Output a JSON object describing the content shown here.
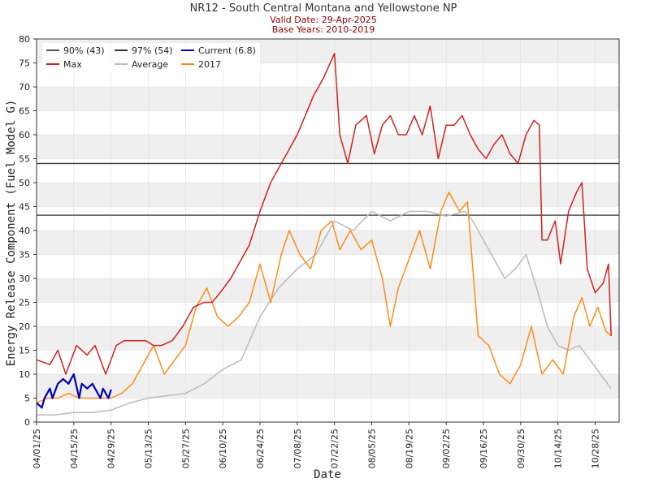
{
  "chart_data": {
    "type": "line",
    "title": "NR12 - South Central Montana and Yellowstone NP",
    "subtitle_lines": [
      "Valid Date: 29-Apr-2025",
      "Base Years: 2010-2019"
    ],
    "xlabel": "Date",
    "ylabel": "Energy Release Component  (Fuel Model G)",
    "x_ticks": [
      "04/01/25",
      "04/15/25",
      "04/29/25",
      "05/13/25",
      "05/27/25",
      "06/10/25",
      "06/24/25",
      "07/08/25",
      "07/22/25",
      "08/05/25",
      "08/19/25",
      "09/02/25",
      "09/16/25",
      "09/30/25",
      "10/14/25",
      "10/28/25"
    ],
    "x_range": [
      "2025-04-01",
      "2025-11-06"
    ],
    "ylim": [
      0,
      80
    ],
    "y_ticks": [
      0,
      5,
      10,
      15,
      20,
      25,
      30,
      35,
      40,
      45,
      50,
      55,
      60,
      65,
      70,
      75,
      80
    ],
    "grid": true,
    "legend_position": "top-left",
    "thresholds": [
      {
        "name": "90% (43)",
        "value": 43.2,
        "color": "#555555"
      },
      {
        "name": "97% (54)",
        "value": 54,
        "color": "#333333"
      }
    ],
    "series": [
      {
        "name": "Max",
        "color": "#d42020",
        "x": [
          "2025-04-01",
          "2025-04-06",
          "2025-04-09",
          "2025-04-12",
          "2025-04-16",
          "2025-04-20",
          "2025-04-23",
          "2025-04-27",
          "2025-05-01",
          "2025-05-04",
          "2025-05-08",
          "2025-05-12",
          "2025-05-15",
          "2025-05-18",
          "2025-05-22",
          "2025-05-26",
          "2025-05-30",
          "2025-06-03",
          "2025-06-06",
          "2025-06-09",
          "2025-06-13",
          "2025-06-16",
          "2025-06-20",
          "2025-06-24",
          "2025-06-28",
          "2025-07-01",
          "2025-07-04",
          "2025-07-08",
          "2025-07-11",
          "2025-07-14",
          "2025-07-18",
          "2025-07-22",
          "2025-07-24",
          "2025-07-27",
          "2025-07-30",
          "2025-08-03",
          "2025-08-06",
          "2025-08-09",
          "2025-08-12",
          "2025-08-15",
          "2025-08-18",
          "2025-08-21",
          "2025-08-24",
          "2025-08-27",
          "2025-08-30",
          "2025-09-02",
          "2025-09-05",
          "2025-09-08",
          "2025-09-11",
          "2025-09-14",
          "2025-09-17",
          "2025-09-20",
          "2025-09-23",
          "2025-09-26",
          "2025-09-29",
          "2025-10-02",
          "2025-10-05",
          "2025-10-07",
          "2025-10-08",
          "2025-10-10",
          "2025-10-13",
          "2025-10-15",
          "2025-10-18",
          "2025-10-21",
          "2025-10-23",
          "2025-10-25",
          "2025-10-28",
          "2025-10-31",
          "2025-11-02",
          "2025-11-03"
        ],
        "y": [
          13,
          12,
          15,
          10,
          16,
          14,
          16,
          10,
          16,
          17,
          17,
          17,
          16,
          16,
          17,
          20,
          24,
          25,
          25,
          27,
          30,
          33,
          37,
          44,
          50,
          53,
          56,
          60,
          64,
          68,
          72,
          77,
          60,
          54,
          62,
          64,
          56,
          62,
          64,
          60,
          60,
          64,
          60,
          66,
          55,
          62,
          62,
          64,
          60,
          57,
          55,
          58,
          60,
          56,
          54,
          60,
          63,
          62,
          38,
          38,
          42,
          33,
          44,
          48,
          50,
          32,
          27,
          29,
          33,
          18
        ]
      },
      {
        "name": "Average",
        "color": "#bbbbbb",
        "x": [
          "2025-04-01",
          "2025-04-08",
          "2025-04-15",
          "2025-04-22",
          "2025-04-29",
          "2025-05-06",
          "2025-05-13",
          "2025-05-20",
          "2025-05-27",
          "2025-06-03",
          "2025-06-10",
          "2025-06-17",
          "2025-06-24",
          "2025-07-01",
          "2025-07-08",
          "2025-07-15",
          "2025-07-22",
          "2025-07-29",
          "2025-08-05",
          "2025-08-12",
          "2025-08-19",
          "2025-08-26",
          "2025-09-02",
          "2025-09-09",
          "2025-09-12",
          "2025-09-16",
          "2025-09-20",
          "2025-09-24",
          "2025-09-28",
          "2025-10-02",
          "2025-10-06",
          "2025-10-10",
          "2025-10-14",
          "2025-10-18",
          "2025-10-22",
          "2025-10-26",
          "2025-10-30",
          "2025-11-03"
        ],
        "y": [
          1.5,
          1.5,
          2,
          2,
          2.5,
          4,
          5,
          5.5,
          6,
          8,
          11,
          13,
          22,
          28,
          32,
          35,
          42,
          40,
          44,
          42,
          44,
          44,
          43,
          44,
          42,
          38,
          34,
          30,
          32,
          35,
          28,
          20,
          16,
          15,
          16,
          13,
          10,
          7
        ]
      },
      {
        "name": "2017",
        "color": "#ff8c1a",
        "x": [
          "2025-04-01",
          "2025-04-05",
          "2025-04-09",
          "2025-04-13",
          "2025-04-17",
          "2025-04-21",
          "2025-04-25",
          "2025-04-29",
          "2025-05-03",
          "2025-05-07",
          "2025-05-11",
          "2025-05-15",
          "2025-05-19",
          "2025-05-23",
          "2025-05-27",
          "2025-05-31",
          "2025-06-04",
          "2025-06-08",
          "2025-06-12",
          "2025-06-16",
          "2025-06-20",
          "2025-06-24",
          "2025-06-28",
          "2025-07-02",
          "2025-07-05",
          "2025-07-09",
          "2025-07-13",
          "2025-07-17",
          "2025-07-21",
          "2025-07-24",
          "2025-07-28",
          "2025-08-01",
          "2025-08-05",
          "2025-08-09",
          "2025-08-12",
          "2025-08-15",
          "2025-08-19",
          "2025-08-23",
          "2025-08-27",
          "2025-08-31",
          "2025-09-03",
          "2025-09-07",
          "2025-09-10",
          "2025-09-14",
          "2025-09-18",
          "2025-09-22",
          "2025-09-26",
          "2025-09-30",
          "2025-10-04",
          "2025-10-08",
          "2025-10-12",
          "2025-10-16",
          "2025-10-20",
          "2025-10-23",
          "2025-10-26",
          "2025-10-29",
          "2025-11-01",
          "2025-11-03"
        ],
        "y": [
          4,
          5,
          5,
          6,
          5,
          5,
          5,
          5,
          6,
          8,
          12,
          16,
          10,
          13,
          16,
          24,
          28,
          22,
          20,
          22,
          25,
          33,
          25,
          35,
          40,
          35,
          32,
          40,
          42,
          36,
          40,
          36,
          38,
          30,
          20,
          28,
          34,
          40,
          32,
          44,
          48,
          44,
          46,
          18,
          16,
          10,
          8,
          12,
          20,
          10,
          13,
          10,
          22,
          26,
          20,
          24,
          19,
          18
        ]
      },
      {
        "name": "Current (6.8)",
        "color": "#0000b4",
        "x": [
          "2025-04-01",
          "2025-04-03",
          "2025-04-04",
          "2025-04-06",
          "2025-04-07",
          "2025-04-09",
          "2025-04-11",
          "2025-04-13",
          "2025-04-15",
          "2025-04-17",
          "2025-04-18",
          "2025-04-20",
          "2025-04-22",
          "2025-04-24",
          "2025-04-25",
          "2025-04-26",
          "2025-04-28",
          "2025-04-29"
        ],
        "y": [
          4,
          3,
          5,
          7,
          5,
          8,
          9,
          8,
          10,
          5,
          8,
          7,
          8,
          6,
          5,
          7,
          5,
          6.8
        ]
      }
    ]
  }
}
